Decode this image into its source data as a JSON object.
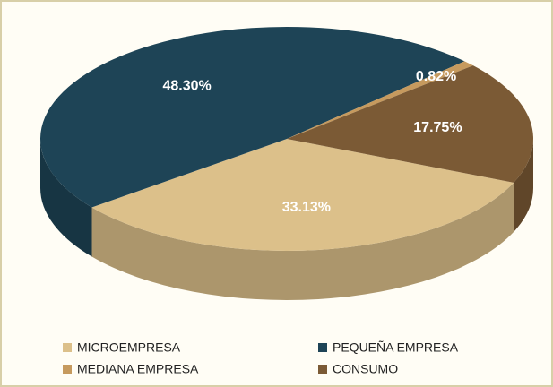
{
  "chart_data": {
    "type": "pie",
    "categories": [
      "MICROEMPRESA",
      "PEQUEÑA EMPRESA",
      "MEDIANA EMPRESA",
      "CONSUMO"
    ],
    "values": [
      33.13,
      48.3,
      0.82,
      17.75
    ],
    "value_labels": [
      "33.13%",
      "48.30%",
      "0.82%",
      "17.75%"
    ],
    "colors": [
      "#dcc08a",
      "#1e4456",
      "#c69a5e",
      "#7b5a35"
    ],
    "legend": "bottom"
  }
}
